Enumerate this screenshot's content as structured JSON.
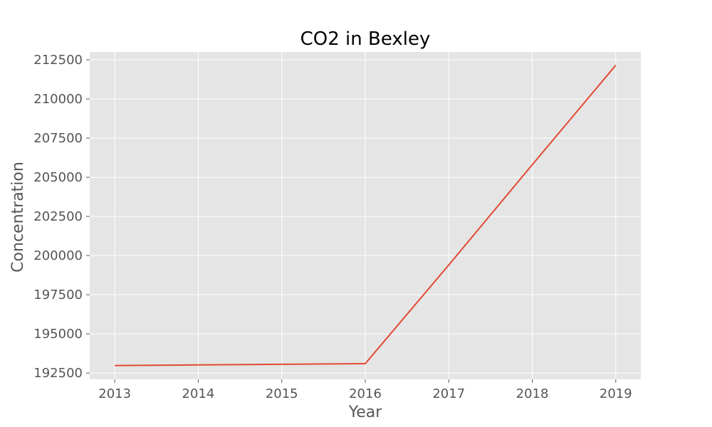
{
  "chart_data": {
    "type": "line",
    "title": "CO2 in Bexley",
    "xlabel": "Year",
    "ylabel": "Concentration",
    "x": [
      2013,
      2014,
      2015,
      2016,
      2017,
      2018,
      2019
    ],
    "series": [
      {
        "values": [
          192980,
          193020,
          193060,
          193100,
          199400,
          205800,
          212150
        ],
        "color": "#e24a33"
      }
    ],
    "xticks": [
      2013,
      2014,
      2015,
      2016,
      2017,
      2018,
      2019
    ],
    "yticks": [
      192500,
      195000,
      197500,
      200000,
      202500,
      205000,
      207500,
      210000,
      212500
    ],
    "xlim": [
      2012.7,
      2019.3
    ],
    "ylim": [
      192100,
      213000
    ],
    "grid": true,
    "background": "#e5e5e5",
    "grid_color": "#ffffff"
  }
}
